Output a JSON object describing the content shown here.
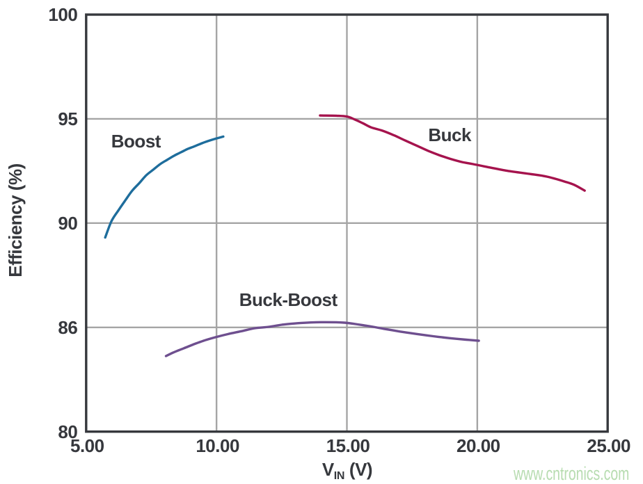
{
  "chart_data": {
    "type": "line",
    "title": "",
    "xlabel": {
      "base": "V",
      "sub": "IN",
      "unit": "(V)"
    },
    "ylabel": "Efficiency (%)",
    "x_range": [
      5,
      25
    ],
    "x_ticks": [
      {
        "v": 5,
        "label": "5.00"
      },
      {
        "v": 10,
        "label": "10.00"
      },
      {
        "v": 15,
        "label": "15.00"
      },
      {
        "v": 20,
        "label": "20.00"
      },
      {
        "v": 25,
        "label": "25.00"
      }
    ],
    "y_ticks": [
      {
        "v": 80,
        "label": "80"
      },
      {
        "v": 86,
        "label": "86"
      },
      {
        "v": 90,
        "label": "90"
      },
      {
        "v": 95,
        "label": "95"
      },
      {
        "v": 100,
        "label": "100"
      }
    ],
    "y_scale": "piecewise: labeled gridlines are equally spaced even though values (80,86,90,95,100) are not",
    "grid": true,
    "legend_position": "inline-curve-labels",
    "series": [
      {
        "name": "Boost",
        "color": "#1e6d9c",
        "label_at": {
          "x": 6.91,
          "y": 93.93
        },
        "points": [
          [
            5.73,
            89.45
          ],
          [
            5.97,
            90.09
          ],
          [
            6.24,
            90.62
          ],
          [
            6.5,
            91.09
          ],
          [
            6.77,
            91.56
          ],
          [
            7.04,
            91.92
          ],
          [
            7.3,
            92.29
          ],
          [
            7.57,
            92.56
          ],
          [
            7.84,
            92.83
          ],
          [
            8.1,
            93.03
          ],
          [
            8.37,
            93.23
          ],
          [
            8.64,
            93.4
          ],
          [
            8.9,
            93.56
          ],
          [
            9.17,
            93.69
          ],
          [
            9.44,
            93.83
          ],
          [
            9.71,
            93.95
          ],
          [
            9.97,
            94.05
          ],
          [
            10.26,
            94.15
          ]
        ]
      },
      {
        "name": "Buck",
        "color": "#a5134d",
        "label_at": {
          "x": 18.94,
          "y": 94.23
        },
        "points": [
          [
            13.97,
            95.16
          ],
          [
            14.6,
            95.15
          ],
          [
            15.0,
            95.11
          ],
          [
            15.3,
            94.97
          ],
          [
            15.61,
            94.79
          ],
          [
            15.93,
            94.59
          ],
          [
            16.37,
            94.43
          ],
          [
            16.81,
            94.21
          ],
          [
            17.24,
            93.96
          ],
          [
            17.67,
            93.72
          ],
          [
            18.11,
            93.47
          ],
          [
            18.54,
            93.26
          ],
          [
            18.97,
            93.08
          ],
          [
            19.41,
            92.93
          ],
          [
            19.84,
            92.83
          ],
          [
            20.27,
            92.72
          ],
          [
            21.1,
            92.52
          ],
          [
            22.0,
            92.36
          ],
          [
            22.67,
            92.23
          ],
          [
            23.36,
            91.99
          ],
          [
            23.71,
            91.84
          ],
          [
            24.12,
            91.56
          ]
        ]
      },
      {
        "name": "Buck-Boost",
        "color": "#6e4f8f",
        "label_at": {
          "x": 12.75,
          "y": 87.06
        },
        "points": [
          [
            8.06,
            84.35
          ],
          [
            8.35,
            84.56
          ],
          [
            8.61,
            84.72
          ],
          [
            8.87,
            84.87
          ],
          [
            9.13,
            85.03
          ],
          [
            9.39,
            85.17
          ],
          [
            9.65,
            85.3
          ],
          [
            10.0,
            85.45
          ],
          [
            10.43,
            85.61
          ],
          [
            10.95,
            85.78
          ],
          [
            11.47,
            85.95
          ],
          [
            12.0,
            86.02
          ],
          [
            12.5,
            86.1
          ],
          [
            13.1,
            86.16
          ],
          [
            14.0,
            86.2
          ],
          [
            14.9,
            86.18
          ],
          [
            15.77,
            86.06
          ],
          [
            16.41,
            85.92
          ],
          [
            17.04,
            85.76
          ],
          [
            17.68,
            85.62
          ],
          [
            18.31,
            85.49
          ],
          [
            18.95,
            85.38
          ],
          [
            19.58,
            85.29
          ],
          [
            20.06,
            85.23
          ]
        ]
      }
    ]
  },
  "watermark": {
    "text": "www.cntronics.com",
    "color": "#b7dcb0"
  },
  "styles": {
    "background": "#ffffff",
    "text_color": "#36383d",
    "grid_color": "#a5a5a5",
    "border_color": "#36383d"
  }
}
